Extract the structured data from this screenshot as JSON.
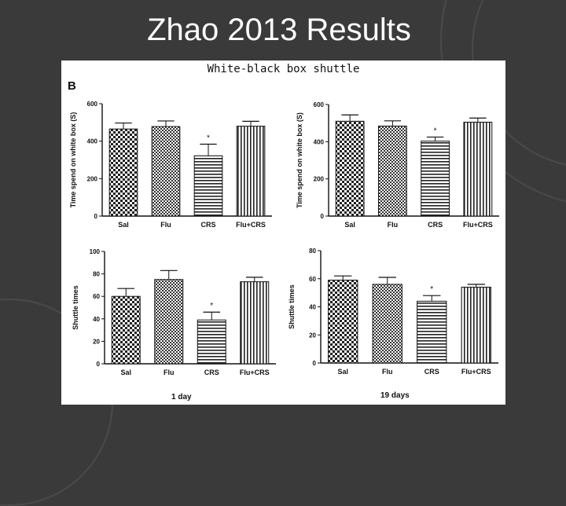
{
  "slide": {
    "title": "Zhao 2013 Results"
  },
  "figure": {
    "title": "White-black box shuttle",
    "panel_letter": "B",
    "condition_labels": [
      "1 day",
      "19 days"
    ]
  },
  "colors": {
    "background": "#3a3a3a",
    "figure_bg": "#ffffff",
    "ink": "#111111"
  },
  "chart_data": [
    {
      "type": "bar",
      "categories": [
        "Sal",
        "Flu",
        "CRS",
        "Flu+CRS"
      ],
      "values": [
        465,
        478,
        322,
        480
      ],
      "errors": [
        32,
        30,
        62,
        26
      ],
      "significance": [
        "",
        "",
        "*",
        ""
      ],
      "ylabel": "Time spend on white box (S)",
      "ylim": [
        0,
        600
      ],
      "yticks": [
        0,
        200,
        400,
        600
      ]
    },
    {
      "type": "bar",
      "categories": [
        "Sal",
        "Flu",
        "CRS",
        "Flu+CRS"
      ],
      "values": [
        510,
        484,
        403,
        505
      ],
      "errors": [
        34,
        28,
        22,
        22
      ],
      "significance": [
        "",
        "",
        "*",
        ""
      ],
      "ylabel": "Time spend on white box (S)",
      "ylim": [
        0,
        600
      ],
      "yticks": [
        0,
        200,
        400,
        600
      ]
    },
    {
      "type": "bar",
      "categories": [
        "Sal",
        "Flu",
        "CRS",
        "Flu+CRS"
      ],
      "values": [
        60,
        75,
        39,
        73
      ],
      "errors": [
        7,
        8,
        7,
        4
      ],
      "significance": [
        "",
        "",
        "*",
        ""
      ],
      "ylabel": "Shuttle times",
      "ylim": [
        0,
        100
      ],
      "yticks": [
        0,
        20,
        40,
        60,
        80,
        100
      ]
    },
    {
      "type": "bar",
      "categories": [
        "Sal",
        "Flu",
        "CRS",
        "Flu+CRS"
      ],
      "values": [
        59,
        56,
        44,
        54
      ],
      "errors": [
        3,
        5,
        4,
        2
      ],
      "significance": [
        "",
        "",
        "*",
        ""
      ],
      "ylabel": "Shuttle times",
      "ylim": [
        0,
        80
      ],
      "yticks": [
        0,
        20,
        40,
        60,
        80
      ]
    }
  ]
}
